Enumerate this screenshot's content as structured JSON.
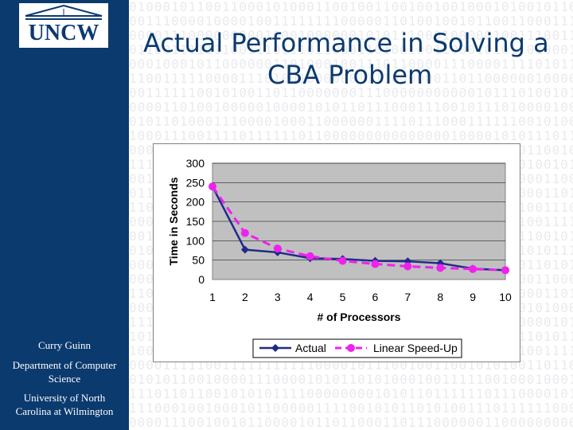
{
  "logo": {
    "text": "UNCW"
  },
  "sidebar": {
    "author": "Curry Guinn",
    "department": "Department of Computer Science",
    "university": "University of North Carolina at Wilmington"
  },
  "slide": {
    "title_line1": "Actual Performance in Solving a",
    "title_line2": "CBA Problem"
  },
  "colors": {
    "sidebar": "#0b3a6e",
    "plot_area": "#c0c0c0",
    "actual": "#1f2a8a",
    "linear": "#ee22ee"
  },
  "chart_data": {
    "type": "line",
    "title": "",
    "xlabel": "# of Processors",
    "ylabel": "Time in Seconds",
    "x": [
      1,
      2,
      3,
      4,
      5,
      6,
      7,
      8,
      9,
      10
    ],
    "ylim": [
      0,
      300
    ],
    "yticks": [
      0,
      50,
      100,
      150,
      200,
      250,
      300
    ],
    "grid": true,
    "legend": "bottom",
    "series": [
      {
        "name": "Actual",
        "values": [
          240,
          77,
          70,
          55,
          53,
          48,
          47,
          42,
          28,
          24
        ],
        "style": "solid",
        "marker": "diamond"
      },
      {
        "name": "Linear Speed-Up",
        "values": [
          240,
          120,
          80,
          60,
          48,
          40,
          34,
          30,
          27,
          24
        ],
        "style": "dashed",
        "marker": "circle"
      }
    ]
  }
}
